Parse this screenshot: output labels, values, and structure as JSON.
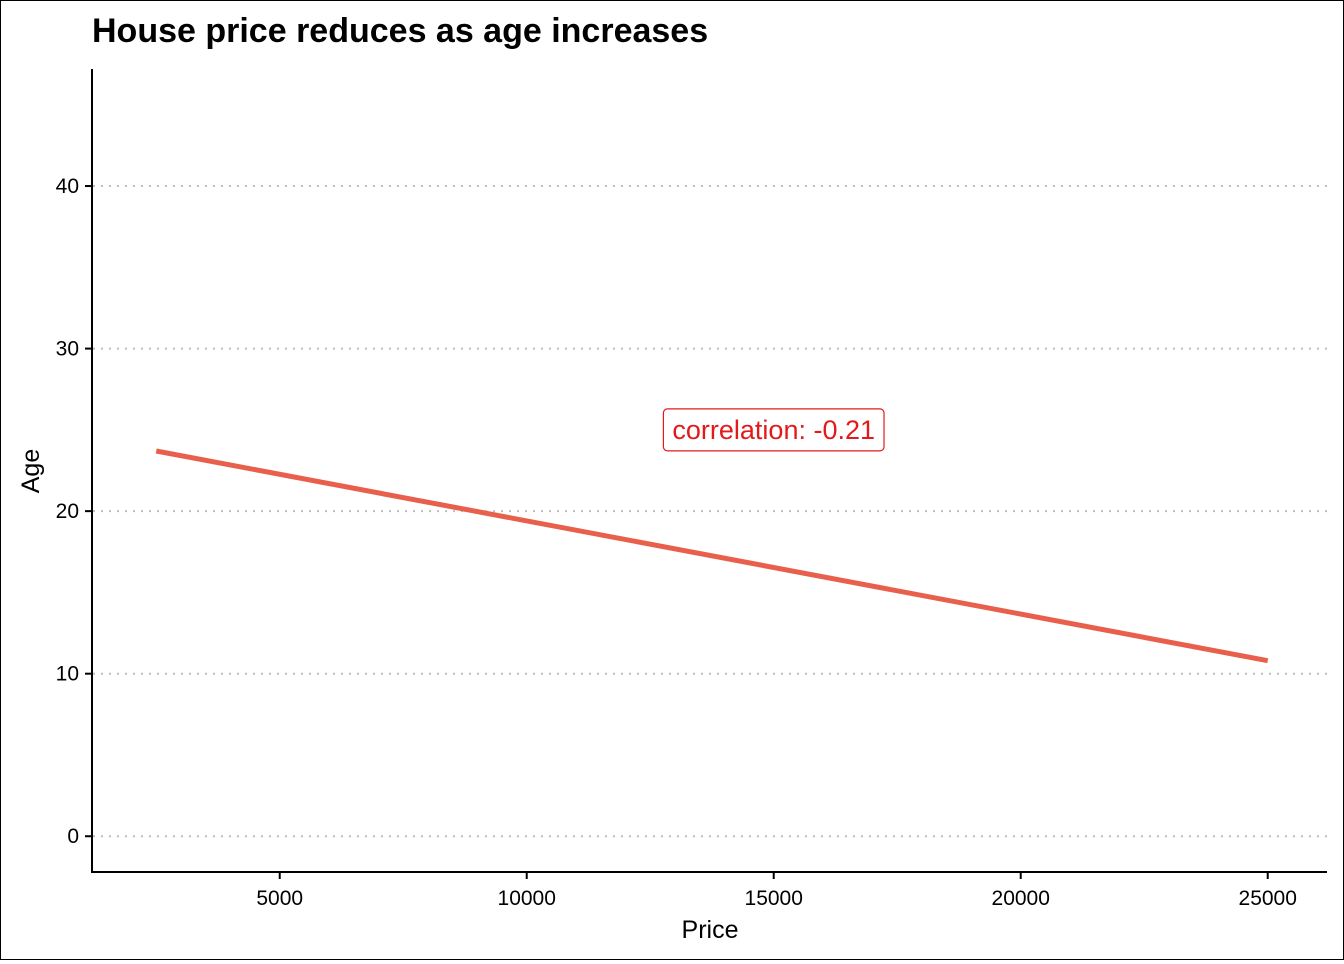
{
  "chart_data": {
    "type": "line",
    "title": "House price reduces as age increases",
    "xlabel": "Price",
    "ylabel": "Age",
    "xlim": [
      1200,
      26200
    ],
    "ylim": [
      -2.2,
      47.2
    ],
    "x_ticks": [
      5000,
      10000,
      15000,
      20000,
      25000
    ],
    "y_ticks": [
      0,
      10,
      20,
      30,
      40
    ],
    "grid": {
      "horizontal": true,
      "vertical": false,
      "style": "dotted"
    },
    "series": [
      {
        "x": [
          2500,
          25000
        ],
        "y": [
          23.7,
          10.8
        ],
        "color": "#E8604C"
      }
    ],
    "annotations": [
      {
        "text": "correlation: -0.21",
        "x": 15000,
        "y": 25,
        "color": "#E31A1C"
      }
    ]
  },
  "colors": {
    "line": "#E8604C",
    "annotation": "#E31A1C",
    "grid": "#BEBEBE",
    "axis": "#000000"
  }
}
